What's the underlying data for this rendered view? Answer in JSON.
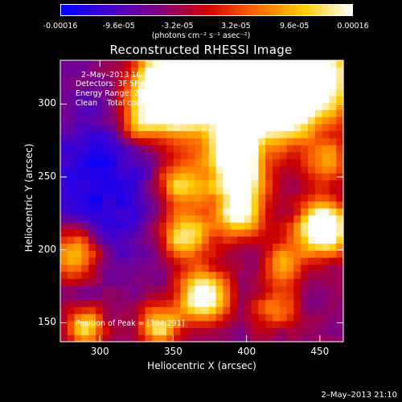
{
  "chart_data": {
    "type": "heatmap",
    "title": "Reconstructed RHESSI Image",
    "xlabel": "Heliocentric X (arcsec)",
    "ylabel": "Heliocentric Y (arcsec)",
    "xlim": [
      273,
      466
    ],
    "ylim": [
      137,
      330
    ],
    "xticks": [
      300,
      350,
      400,
      450
    ],
    "yticks": [
      150,
      200,
      250,
      300
    ],
    "colorbar": {
      "min": -0.00016,
      "max": 0.00016,
      "tick_labels": [
        "-0.00016",
        "-9.6e-05",
        "-3.2e-05",
        "3.2e-05",
        "9.6e-05",
        "0.00016"
      ],
      "tick_values": [
        -0.00016,
        -9.6e-05,
        -3.2e-05,
        3.2e-05,
        9.6e-05,
        0.00016
      ],
      "unit": "(photons cm⁻² s⁻¹ asec⁻²)",
      "colors": [
        "#0000ff",
        "#4400cc",
        "#800080",
        "#cc0000",
        "#ff6600",
        "#ffcc00",
        "#ffffff"
      ]
    },
    "annotations": {
      "time_range": "2–May–2013 16:06:28.000 to 16:13:00.000",
      "detectors": "Detectors: 3F 5F 6F 7F 8F 9F, Att 0",
      "energy_range": "Energy Range: 25.0 – 50.0 keV",
      "clean_counts": "Clean    Total counts: 1.12E+04",
      "peak": "Position of Peak = [394,291]"
    },
    "grid": false,
    "peak_position": [
      394,
      291
    ]
  },
  "footer": {
    "date": "2–May–2013 21:10"
  }
}
